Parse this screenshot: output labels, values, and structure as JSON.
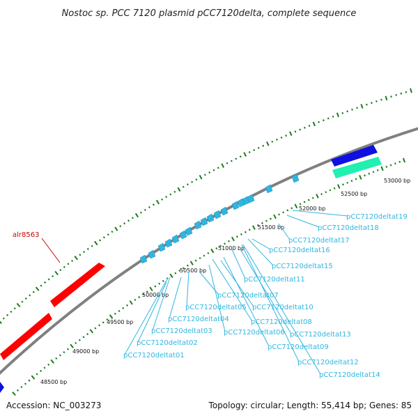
{
  "header": {
    "title": "Nostoc sp. PCC 7120 plasmid pCC7120delta, complete sequence"
  },
  "footer": {
    "accession": "Accession: NC_003273",
    "summary": "Topology: circular; Length: 55,414 bp; Genes: 85"
  },
  "colors": {
    "backbone": "#808080",
    "tick": "#1a7a1a",
    "orf_red": "#ff0000",
    "orf_blue": "#1010e0",
    "orf_teal": "#20f0b0",
    "trna": "#2fb6e0",
    "label": "#2fb6e0",
    "label_red": "#d00000"
  },
  "positions": [
    "48500 bp",
    "49000 bp",
    "49500 bp",
    "50000 bp",
    "50500 bp",
    "51000 bp",
    "51500 bp",
    "52000 bp",
    "52500 bp",
    "53000 bp"
  ],
  "genes": {
    "red": {
      "label": "alr8563"
    },
    "trna_labels": [
      "pCC7120deltat01",
      "pCC7120deltat02",
      "pCC7120deltat03",
      "pCC7120deltat04",
      "pCC7120deltat05",
      "pCC7120deltat06",
      "pCC7120deltat07",
      "pCC7120deltat08",
      "pCC7120deltat09",
      "pCC7120deltat10",
      "pCC7120deltat11",
      "pCC7120deltat12",
      "pCC7120deltat13",
      "pCC7120deltat14",
      "pCC7120deltat15",
      "pCC7120deltat16",
      "pCC7120deltat17",
      "pCC7120deltat18",
      "pCC7120deltat19"
    ]
  }
}
